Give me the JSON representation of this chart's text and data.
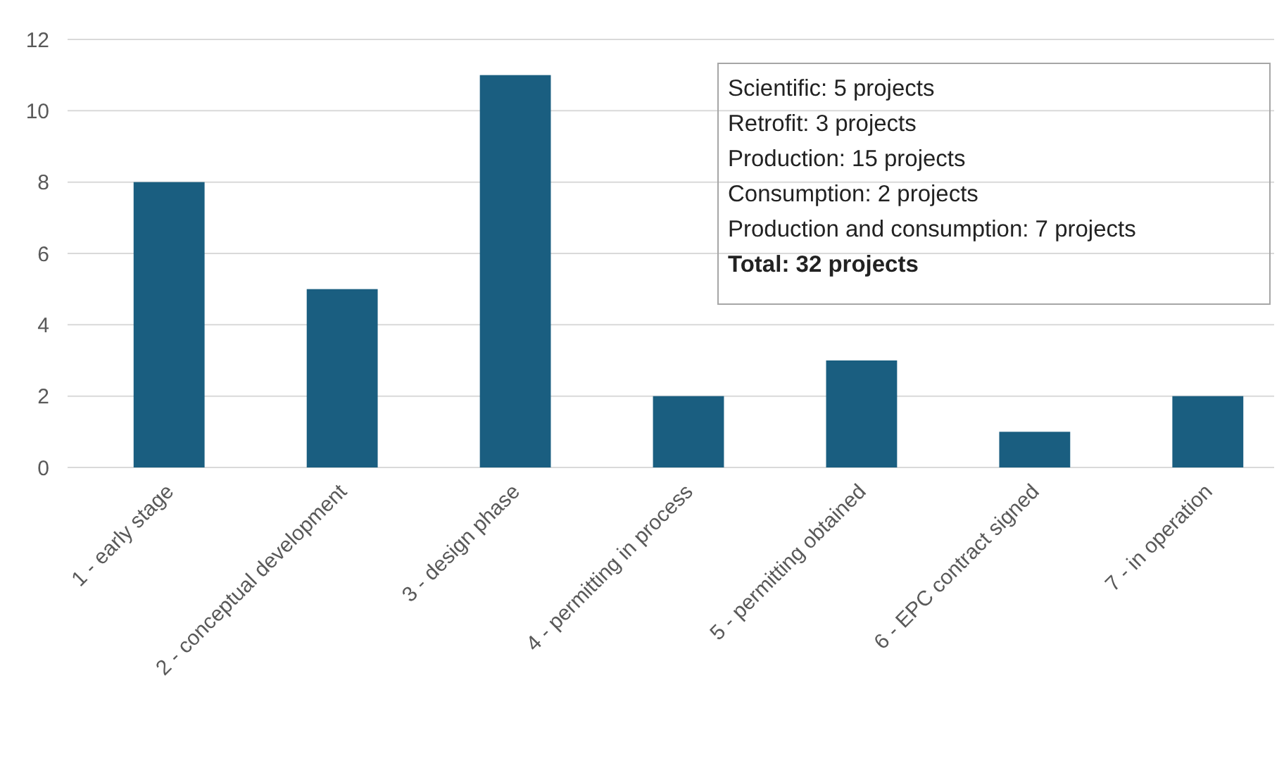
{
  "chart_data": {
    "type": "bar",
    "categories": [
      "1 - early stage",
      "2 - conceptual development",
      "3 - design phase",
      "4 - permitting in process",
      "5 - permitting obtained",
      "6 - EPC contract signed",
      "7 - in operation"
    ],
    "values": [
      8,
      5,
      11,
      2,
      3,
      1,
      2
    ],
    "color": "#1a5e80",
    "ylim": [
      0,
      12
    ],
    "yticks": [
      0,
      2,
      4,
      6,
      8,
      10,
      12
    ],
    "grid": "y",
    "annotations": [
      "Scientific: 5 projects",
      "Retrofit: 3 projects",
      "Production: 15 projects",
      "Consumption: 2 projects",
      "Production and consumption: 7 projects",
      "Total: 32 projects"
    ]
  }
}
